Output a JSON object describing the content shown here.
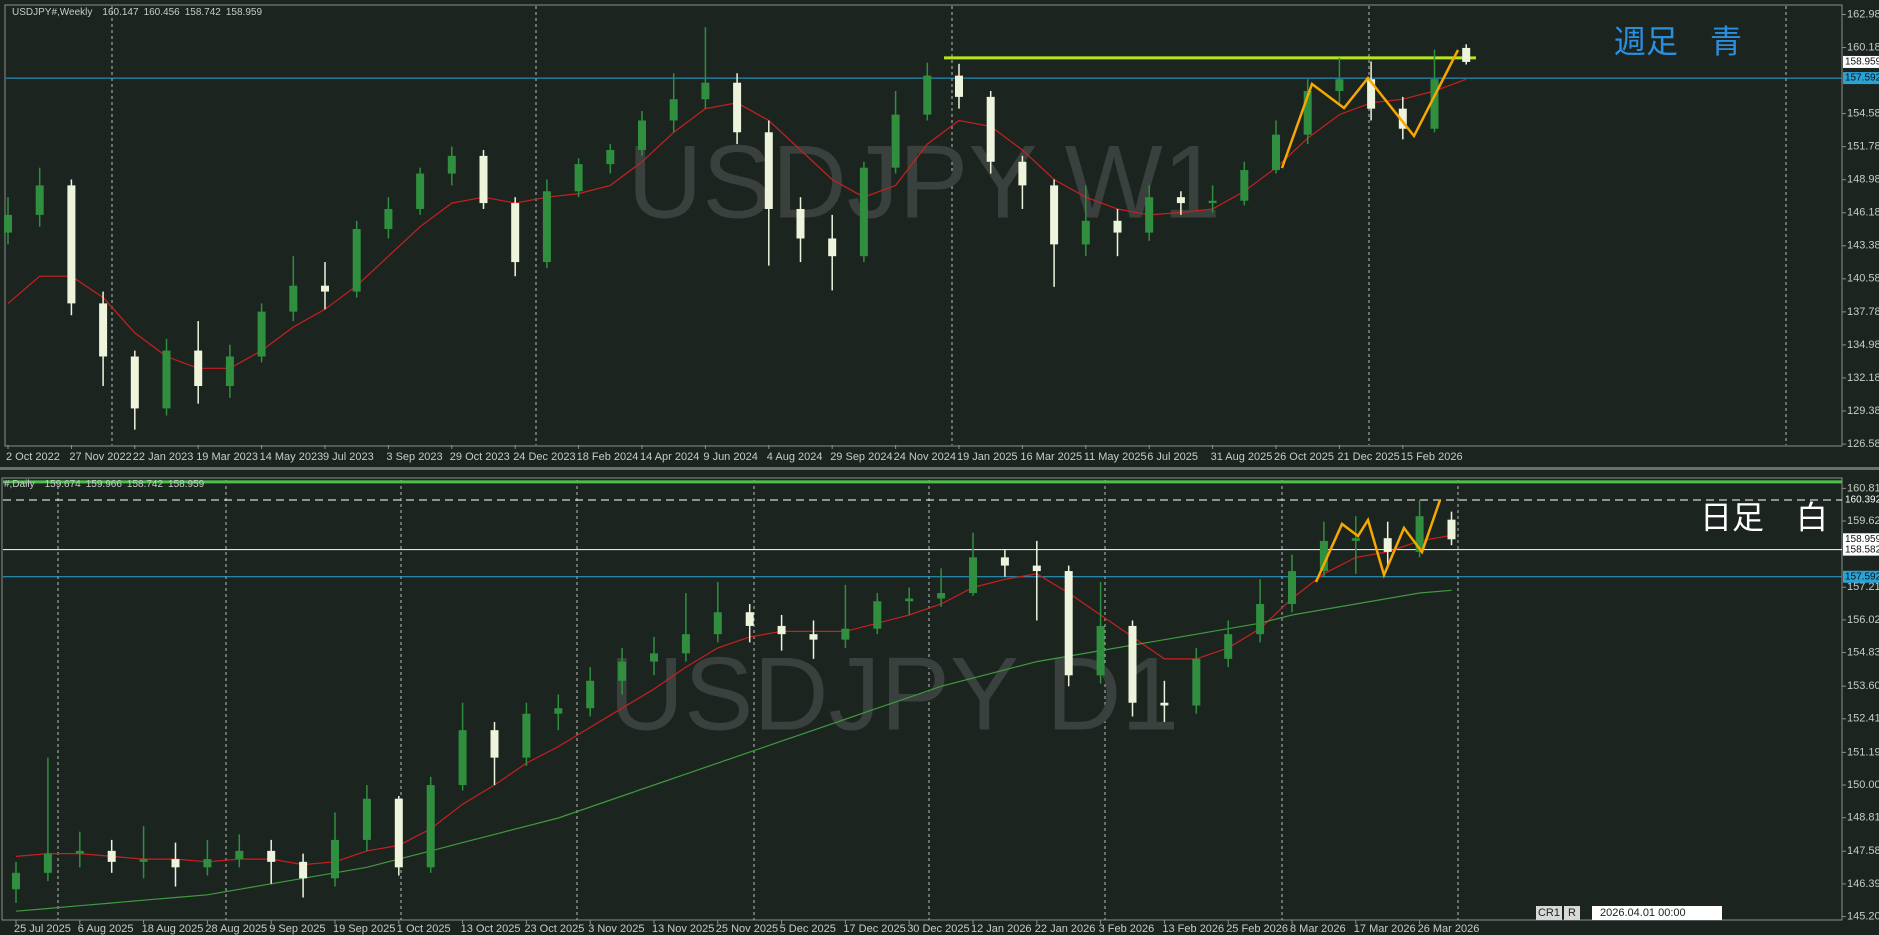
{
  "chart_data": [
    {
      "type": "candlestick",
      "symbol": "USDJPY#,Weekly",
      "watermark": "USDJPY W1",
      "annotation": "週足　青",
      "annotation_color": "#2b8fe0",
      "categories": [
        "2 Oct 2022",
        null,
        "27 Nov 2022",
        null,
        "22 Jan 2023",
        null,
        "19 Mar 2023",
        null,
        "14 May 2023",
        null,
        "9 Jul 2023",
        null,
        "3 Sep 2023",
        null,
        "29 Oct 2023",
        null,
        "24 Dec 2023",
        null,
        "18 Feb 2024",
        null,
        "14 Apr 2024",
        null,
        "9 Jun 2024",
        null,
        "4 Aug 2024",
        null,
        "29 Sep 2024",
        null,
        "24 Nov 2024",
        null,
        "19 Jan 2025",
        null,
        "16 Mar 2025",
        null,
        "11 May 2025",
        null,
        "6 Jul 2025",
        null,
        "31 Aug 2025",
        null,
        "26 Oct 2025",
        null,
        "21 Dec 2025",
        null,
        "15 Feb 2026",
        null,
        null
      ],
      "open": [
        144.5,
        146.0,
        148.5,
        138.5,
        134.0,
        129.6,
        134.5,
        131.5,
        134.0,
        137.8,
        140.0,
        139.5,
        144.8,
        146.5,
        149.5,
        151.0,
        147.0,
        142.0,
        148.0,
        150.3,
        151.5,
        154.0,
        155.8,
        157.2,
        153.0,
        146.5,
        144.0,
        142.5,
        150.0,
        154.5,
        157.8,
        156.0,
        150.5,
        148.5,
        143.5,
        145.5,
        144.5,
        147.5,
        147.0,
        147.2,
        149.8,
        152.8,
        156.5,
        157.5,
        155.0,
        153.3,
        160.147
      ],
      "high": [
        147.5,
        150.0,
        149.0,
        139.5,
        134.5,
        135.5,
        137.0,
        135.0,
        138.5,
        142.5,
        142.0,
        145.5,
        147.5,
        150.0,
        151.8,
        151.5,
        147.5,
        149.0,
        150.8,
        152.0,
        154.8,
        158.0,
        161.9,
        158.0,
        154.0,
        147.5,
        146.0,
        150.5,
        156.5,
        158.9,
        158.8,
        156.5,
        151.0,
        149.0,
        148.5,
        146.5,
        148.5,
        148.0,
        148.5,
        150.5,
        154.0,
        157.5,
        159.3,
        159.0,
        156.0,
        160.0,
        160.456
      ],
      "low": [
        143.5,
        145.0,
        137.5,
        131.5,
        127.8,
        129.0,
        130.0,
        130.5,
        133.5,
        137.0,
        138.0,
        139.0,
        144.0,
        146.0,
        148.5,
        146.5,
        140.8,
        141.5,
        147.5,
        149.5,
        151.0,
        153.0,
        155.0,
        152.0,
        141.7,
        142.0,
        139.6,
        142.0,
        149.5,
        154.0,
        155.0,
        149.5,
        146.5,
        139.9,
        142.5,
        142.5,
        143.8,
        146.0,
        146.2,
        146.8,
        149.5,
        152.0,
        155.5,
        154.0,
        152.4,
        153.0,
        158.742
      ],
      "close": [
        146.0,
        148.5,
        138.5,
        134.0,
        129.6,
        134.5,
        131.5,
        134.0,
        137.8,
        140.0,
        139.5,
        144.8,
        146.5,
        149.5,
        151.0,
        147.0,
        142.0,
        148.0,
        150.3,
        151.5,
        154.0,
        155.8,
        157.2,
        153.0,
        146.5,
        144.0,
        142.5,
        150.0,
        154.5,
        157.8,
        156.0,
        150.5,
        148.5,
        143.5,
        145.5,
        144.5,
        147.5,
        147.0,
        147.2,
        149.8,
        152.8,
        156.5,
        157.5,
        155.0,
        153.3,
        157.5,
        158.959
      ],
      "up_color": "#2f8f3f",
      "down_color": "#eef3dc",
      "lines": [
        {
          "color": "#c8201e",
          "values": [
            138.5,
            140.8,
            140.8,
            139.0,
            136.0,
            134.0,
            133.0,
            133.0,
            134.5,
            136.5,
            138.0,
            140.0,
            142.5,
            145.0,
            147.0,
            147.5,
            147.0,
            147.5,
            147.8,
            148.5,
            150.5,
            153.0,
            155.0,
            155.5,
            154.0,
            151.5,
            149.0,
            147.5,
            148.5,
            152.0,
            154.0,
            153.5,
            151.5,
            149.0,
            147.5,
            146.5,
            146.0,
            146.2,
            146.5,
            148.0,
            150.0,
            152.5,
            154.5,
            155.5,
            155.8,
            156.5,
            157.5
          ]
        }
      ],
      "hlines": [
        {
          "value": 159.3,
          "color": "#b5e61d",
          "axis_label": false
        },
        {
          "value": 157.592,
          "color": "#29a3d6",
          "axis_label": true
        }
      ],
      "ylim": [
        126.5,
        163.7
      ],
      "yticks": [
        {
          "value": 162.98,
          "label": "162.980"
        },
        {
          "value": 160.18,
          "label": "160.180"
        },
        {
          "value": 154.58,
          "label": "154.580"
        },
        {
          "value": 151.78,
          "label": "151.780"
        },
        {
          "value": 148.98,
          "label": "148.980"
        },
        {
          "value": 146.18,
          "label": "146.180"
        },
        {
          "value": 143.38,
          "label": "143.380"
        },
        {
          "value": 140.58,
          "label": "140.580"
        },
        {
          "value": 137.78,
          "label": "137.780"
        },
        {
          "value": 134.98,
          "label": "134.980"
        },
        {
          "value": 132.18,
          "label": "132.180"
        },
        {
          "value": 129.38,
          "label": "129.380"
        },
        {
          "value": 126.58,
          "label": "126.580"
        }
      ]
    },
    {
      "type": "candlestick",
      "symbol": "#,Daily",
      "watermark": "USDJPY D1",
      "annotation": "日足　白",
      "annotation_color": "#ffffff",
      "categories": [
        "25 Jul 2025",
        null,
        "6 Aug 2025",
        null,
        "18 Aug 2025",
        null,
        "28 Aug 2025",
        null,
        "9 Sep 2025",
        null,
        "19 Sep 2025",
        null,
        "1 Oct 2025",
        null,
        "13 Oct 2025",
        null,
        "23 Oct 2025",
        null,
        "3 Nov 2025",
        null,
        "13 Nov 2025",
        null,
        "25 Nov 2025",
        null,
        "5 Dec 2025",
        null,
        "17 Dec 2025",
        null,
        "30 Dec 2025",
        null,
        "12 Jan 2026",
        null,
        "22 Jan 2026",
        null,
        "3 Feb 2026",
        null,
        "13 Feb 2026",
        null,
        "25 Feb 2026",
        null,
        "8 Mar 2026",
        null,
        "17 Mar 2026",
        null,
        "26 Mar 2026",
        null
      ],
      "open": [
        146.2,
        146.8,
        147.5,
        147.6,
        147.2,
        147.3,
        147.0,
        147.3,
        147.6,
        147.2,
        146.6,
        148.0,
        149.5,
        147.0,
        150.0,
        152.0,
        151.0,
        152.6,
        152.8,
        153.8,
        154.5,
        154.8,
        155.5,
        156.3,
        155.8,
        155.5,
        155.3,
        155.7,
        156.7,
        156.8,
        157.0,
        158.3,
        158.0,
        157.8,
        154.0,
        155.8,
        153.0,
        152.9,
        154.6,
        155.5,
        156.6,
        157.8,
        158.9,
        159.0,
        158.5,
        159.674
      ],
      "high": [
        147.2,
        151.0,
        148.3,
        148.0,
        148.5,
        147.9,
        148.0,
        148.2,
        148.0,
        147.5,
        149.0,
        150.0,
        149.6,
        150.3,
        153.0,
        152.3,
        153.0,
        153.3,
        154.3,
        155.0,
        155.4,
        157.0,
        157.4,
        156.6,
        156.2,
        156.0,
        157.3,
        157.0,
        157.2,
        157.9,
        159.2,
        158.6,
        158.9,
        158.0,
        157.4,
        156.0,
        153.8,
        155.0,
        156.0,
        157.5,
        158.4,
        159.6,
        159.8,
        159.6,
        160.4,
        159.966
      ],
      "low": [
        145.7,
        146.5,
        147.0,
        146.8,
        146.6,
        146.3,
        146.7,
        147.0,
        146.4,
        145.9,
        146.3,
        147.6,
        146.7,
        146.8,
        149.8,
        150.0,
        150.7,
        152.0,
        152.5,
        153.3,
        154.0,
        154.5,
        155.2,
        155.2,
        154.9,
        154.6,
        155.0,
        155.5,
        156.2,
        156.5,
        156.9,
        157.6,
        156.0,
        153.6,
        153.7,
        152.5,
        152.3,
        152.6,
        154.3,
        155.2,
        156.3,
        157.6,
        157.7,
        158.0,
        158.3,
        158.742
      ],
      "close": [
        146.8,
        147.5,
        147.6,
        147.2,
        147.3,
        147.0,
        147.3,
        147.6,
        147.2,
        146.6,
        148.0,
        149.5,
        147.0,
        150.0,
        152.0,
        151.0,
        152.6,
        152.8,
        153.8,
        154.5,
        154.8,
        155.5,
        156.3,
        155.8,
        155.5,
        155.3,
        155.7,
        156.7,
        156.8,
        157.0,
        158.3,
        158.0,
        157.8,
        154.0,
        155.8,
        153.0,
        152.9,
        154.6,
        155.5,
        156.6,
        157.8,
        158.9,
        159.0,
        158.5,
        159.8,
        158.959
      ],
      "up_color": "#2f8f3f",
      "down_color": "#eef3dc",
      "lines": [
        {
          "color": "#c8201e",
          "values": [
            147.4,
            147.5,
            147.5,
            147.4,
            147.3,
            147.3,
            147.2,
            147.3,
            147.3,
            147.1,
            147.2,
            147.6,
            147.8,
            148.4,
            149.3,
            150.0,
            150.8,
            151.4,
            152.1,
            152.8,
            153.5,
            154.3,
            155.0,
            155.4,
            155.6,
            155.6,
            155.6,
            155.9,
            156.2,
            156.6,
            157.2,
            157.5,
            157.7,
            157.0,
            156.2,
            155.4,
            154.6,
            154.6,
            155.0,
            155.7,
            156.8,
            157.7,
            158.3,
            158.5,
            158.9,
            159.1
          ]
        },
        {
          "color": "#3f9a3f",
          "values": [
            145.4,
            145.5,
            145.6,
            145.7,
            145.8,
            145.9,
            146.0,
            146.2,
            146.4,
            146.6,
            146.8,
            147.0,
            147.3,
            147.6,
            147.9,
            148.2,
            148.5,
            148.8,
            149.2,
            149.6,
            150.0,
            150.4,
            150.8,
            151.2,
            151.6,
            152.0,
            152.4,
            152.8,
            153.2,
            153.6,
            153.9,
            154.2,
            154.5,
            154.7,
            154.9,
            155.1,
            155.3,
            155.5,
            155.7,
            155.9,
            156.2,
            156.4,
            156.6,
            156.8,
            157.0,
            157.1
          ]
        }
      ],
      "hlines": [
        {
          "value": 161.05,
          "color": "#4cc24c",
          "axis_label": false
        },
        {
          "value": 160.392,
          "color": "#ffffff",
          "dash": true,
          "axis_label": true
        },
        {
          "value": 158.582,
          "color": "#ffffff",
          "axis_label": true
        },
        {
          "value": 157.592,
          "color": "#29a3d6",
          "axis_label": true
        }
      ],
      "ylim": [
        145.08,
        161.12
      ],
      "yticks": [
        160.815,
        159.625,
        {
          "value": 157.21,
          "label": "157.210"
        },
        {
          "value": 156.02,
          "label": "156.020"
        },
        {
          "value": 154.83,
          "label": "154.830"
        },
        153.605,
        152.415,
        {
          "value": 151.19,
          "label": "151.190"
        },
        {
          "value": 150,
          "label": "150.000"
        },
        {
          "value": 148.81,
          "label": "148.810"
        },
        147.585,
        146.395,
        145.205
      ]
    }
  ],
  "status": {
    "profile": "CR1",
    "mode": "R",
    "datetime": "2026.04.01 00:00"
  }
}
